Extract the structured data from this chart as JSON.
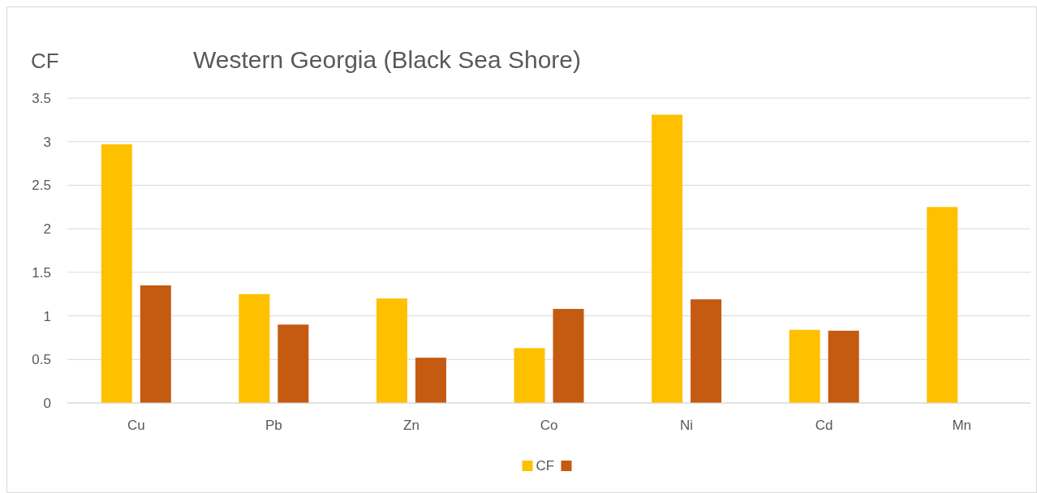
{
  "chart_data": {
    "type": "bar",
    "title": "Western Georgia (Black Sea Shore)",
    "ylabel": "CF",
    "categories": [
      "Cu",
      "Pb",
      "Zn",
      "Co",
      "Ni",
      "Cd",
      "Mn"
    ],
    "series": [
      {
        "name": "CF",
        "color": "#ffc000",
        "values": [
          2.97,
          1.25,
          1.2,
          0.63,
          3.31,
          0.84,
          2.25
        ]
      },
      {
        "color": "#c55a11",
        "values": [
          1.35,
          0.9,
          0.52,
          1.08,
          1.19,
          0.83,
          null
        ]
      }
    ],
    "ylim": [
      0,
      3.5
    ],
    "yticks": [
      0,
      0.5,
      1,
      1.5,
      2,
      2.5,
      3,
      3.5
    ],
    "grid": "y",
    "legend": "bottom"
  }
}
